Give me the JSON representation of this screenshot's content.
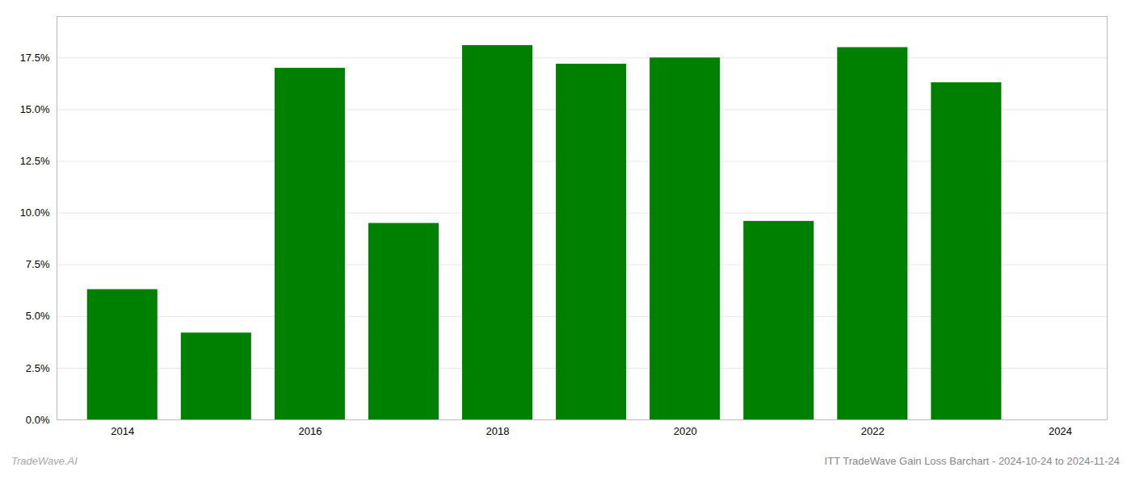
{
  "chart_data": {
    "type": "bar",
    "title": "ITT TradeWave Gain Loss Barchart - 2024-10-24 to 2024-11-24",
    "annotations": [
      {
        "text": "TradeWave.AI"
      }
    ],
    "x": [
      2014,
      2015,
      2016,
      2017,
      2018,
      2019,
      2020,
      2021,
      2022,
      2023
    ],
    "values": [
      0.063,
      0.042,
      0.17,
      0.095,
      0.181,
      0.172,
      0.175,
      0.096,
      0.18,
      0.163
    ],
    "color": "#008000",
    "xlim": [
      2013.3,
      2024.5
    ],
    "xticks": [
      2014,
      2016,
      2018,
      2020,
      2022,
      2024
    ],
    "ylim": [
      0,
      0.195
    ],
    "yticks": [
      {
        "value": 0.0,
        "label": "0.0%"
      },
      {
        "value": 0.025,
        "label": "2.5%"
      },
      {
        "value": 0.05,
        "label": "5.0%"
      },
      {
        "value": 0.075,
        "label": "7.5%"
      },
      {
        "value": 0.1,
        "label": "10.0%"
      },
      {
        "value": 0.125,
        "label": "12.5%"
      },
      {
        "value": 0.15,
        "label": "15.0%"
      },
      {
        "value": 0.175,
        "label": "17.5%"
      }
    ],
    "grid": true
  }
}
